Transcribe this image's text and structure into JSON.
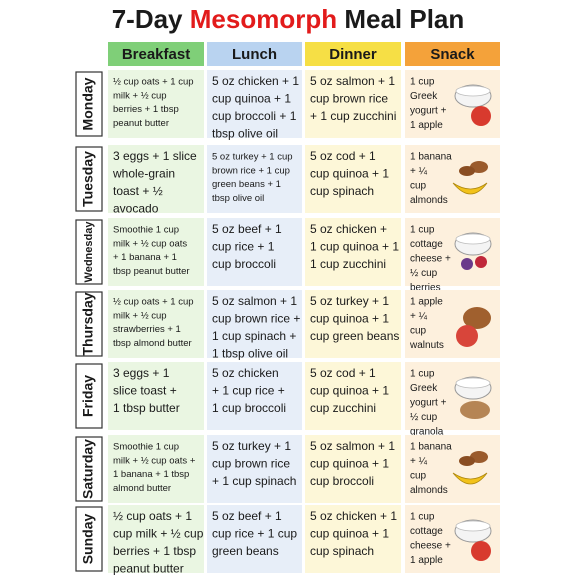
{
  "title": {
    "prefix": "7-Day",
    "highlight": "Mesomorph",
    "suffix": "Meal Plan"
  },
  "table": {
    "headers": [
      "Breakfast",
      "Lunch",
      "Dinner",
      "Snack"
    ],
    "rows": [
      {
        "day": "Monday",
        "meals": [
          [
            "½ cup oats + 1 cup",
            "milk + ½ cup",
            "berries + 1 tbsp",
            "peanut butter"
          ],
          [
            "5 oz chicken + 1",
            "cup quinoa + 1",
            "cup broccoli + 1",
            "tbsp olive oil"
          ],
          [
            "5 oz salmon + 1",
            "cup brown rice",
            "+ 1 cup zucchini"
          ],
          [
            "1 cup",
            "Greek",
            "yogurt +",
            "1 apple"
          ]
        ]
      },
      {
        "day": "Tuesday",
        "meals": [
          [
            "3 eggs + 1 slice",
            "whole-grain",
            "toast + ½",
            "avocado"
          ],
          [
            "5 oz turkey + 1 cup",
            "brown rice + 1 cup",
            "green beans + 1",
            "tbsp olive oil"
          ],
          [
            "5 oz cod + 1",
            "cup quinoa + 1",
            "cup spinach"
          ],
          [
            "1 banana",
            "+ ¼",
            "cup",
            "almonds"
          ]
        ]
      },
      {
        "day": "Wednesday",
        "meals": [
          [
            "Smoothie 1 cup",
            "milk + ½ cup oats",
            "+ 1 banana + 1",
            "tbsp peanut butter"
          ],
          [
            "5 oz beef + 1",
            "cup rice + 1",
            "cup broccoli"
          ],
          [
            "5 oz chicken +",
            "1 cup quinoa + 1",
            "1 cup zucchini"
          ],
          [
            "1 cup",
            "cottage",
            "cheese +",
            "½ cup",
            "berries"
          ]
        ]
      },
      {
        "day": "Thursday",
        "meals": [
          [
            "½ cup oats + 1 cup",
            "milk + ½ cup",
            "strawberries + 1",
            "tbsp almond butter"
          ],
          [
            "5 oz salmon + 1",
            "cup brown rice +",
            "1 cup spinach +",
            "1 tbsp olive oil"
          ],
          [
            "5 oz turkey + 1",
            "cup quinoa + 1",
            "cup green beans"
          ],
          [
            "1 apple",
            "+ ¼",
            "cup",
            "walnuts"
          ]
        ]
      },
      {
        "day": "Friday",
        "meals": [
          [
            "3 eggs + 1",
            "slice toast +",
            "1 tbsp butter"
          ],
          [
            "5 oz chicken",
            "+ 1 cup rice +",
            "1 cup broccoli"
          ],
          [
            "5 oz cod + 1",
            "cup quinoa + 1",
            "cup zucchini"
          ],
          [
            "1 cup",
            "Greek",
            "yogurt +",
            "½ cup",
            "granola"
          ]
        ]
      },
      {
        "day": "Saturday",
        "meals": [
          [
            "Smoothie 1 cup",
            "milk + ½ cup oats +",
            "1 banana + 1 tbsp",
            "almond butter"
          ],
          [
            "5 oz turkey + 1",
            "cup brown rice",
            "+ 1 cup spinach"
          ],
          [
            "5 oz salmon + 1",
            "cup quinoa + 1",
            "cup broccoli"
          ],
          [
            "1 banana",
            "+ ¼",
            "cup",
            "almonds"
          ]
        ]
      },
      {
        "day": "Sunday",
        "meals": [
          [
            "½ cup oats + 1",
            "cup milk + ½ cup",
            "berries + 1 tbsp",
            "peanut butter"
          ],
          [
            "5 oz beef + 1",
            "cup rice + 1 cup",
            "green beans"
          ],
          [
            "5 oz chicken + 1",
            "cup quinoa + 1",
            "cup spinach"
          ],
          [
            "1 cup",
            "cottage",
            "cheese +",
            "1 apple"
          ]
        ]
      }
    ]
  }
}
